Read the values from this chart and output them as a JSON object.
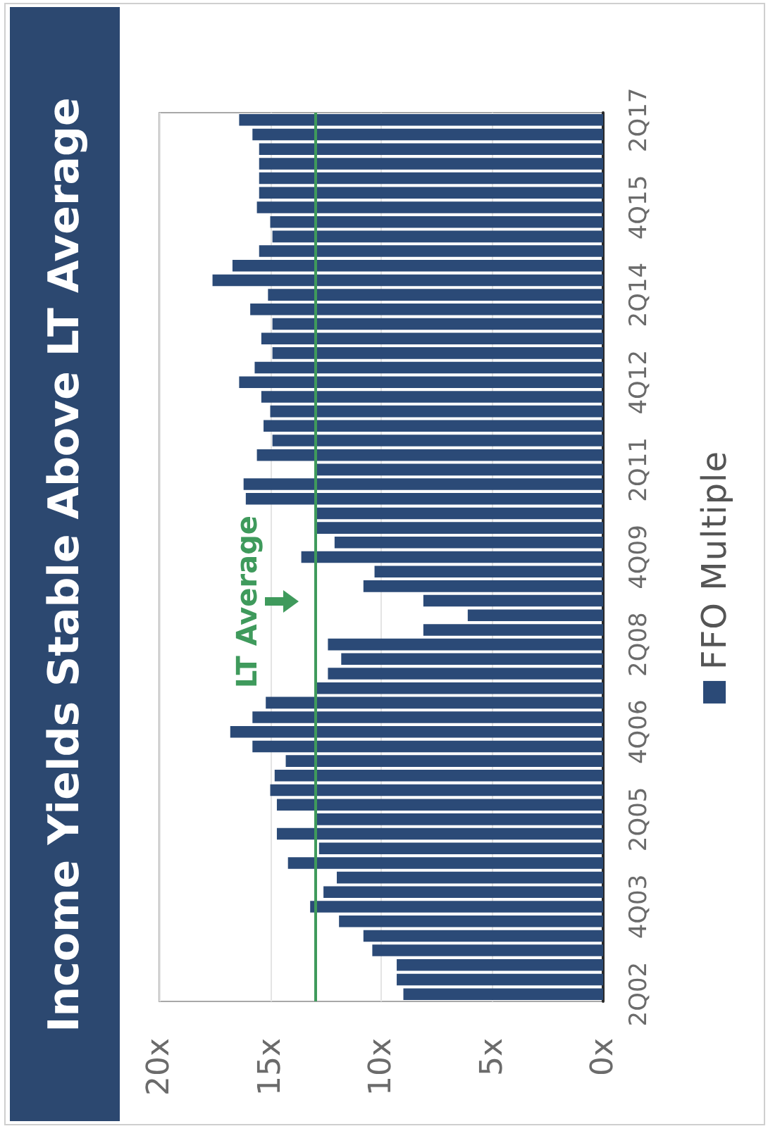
{
  "chart_data": {
    "type": "bar",
    "title": "Income Yields Stable Above LT Average",
    "orientation": "horizontal",
    "categories": [
      "2Q17",
      null,
      null,
      null,
      null,
      null,
      "4Q15",
      null,
      null,
      null,
      null,
      null,
      "2Q14",
      null,
      null,
      null,
      null,
      null,
      "4Q12",
      null,
      null,
      null,
      null,
      null,
      "2Q11",
      null,
      null,
      null,
      null,
      null,
      "4Q09",
      null,
      null,
      null,
      null,
      null,
      "2Q08",
      null,
      null,
      null,
      null,
      null,
      "4Q06",
      null,
      null,
      null,
      null,
      null,
      "2Q05",
      null,
      null,
      null,
      null,
      null,
      "4Q03",
      null,
      null,
      null,
      null,
      null,
      "2Q02"
    ],
    "series": [
      {
        "name": "FFO Multiple",
        "color": "#2b4a77",
        "values": [
          16.4,
          15.8,
          15.5,
          15.5,
          15.5,
          15.5,
          15.6,
          15.0,
          14.9,
          15.5,
          16.7,
          17.6,
          15.1,
          15.9,
          14.9,
          15.4,
          14.9,
          15.7,
          16.4,
          15.4,
          15.0,
          15.3,
          14.9,
          15.6,
          13.0,
          16.2,
          16.1,
          12.9,
          12.9,
          12.1,
          13.6,
          10.3,
          10.8,
          8.1,
          6.1,
          8.1,
          12.4,
          11.8,
          12.4,
          13.0,
          15.2,
          15.8,
          16.8,
          15.8,
          14.3,
          14.8,
          15.0,
          14.7,
          12.9,
          14.7,
          12.8,
          14.2,
          12.0,
          12.6,
          13.2,
          11.9,
          10.8,
          10.4,
          9.3,
          9.3,
          9.0
        ]
      }
    ],
    "xlim": [
      20,
      0
    ],
    "xticks": [
      {
        "value": 20,
        "label": "20x"
      },
      {
        "value": 15,
        "label": "15x"
      },
      {
        "value": 10,
        "label": "10x"
      },
      {
        "value": 5,
        "label": "5x"
      },
      {
        "value": 0,
        "label": "0x"
      }
    ],
    "ref_lines": [
      {
        "axis": "x",
        "value": 13,
        "label": "LT Average",
        "color": "#3f9a5c"
      }
    ],
    "grid": "x",
    "legend": "right"
  }
}
